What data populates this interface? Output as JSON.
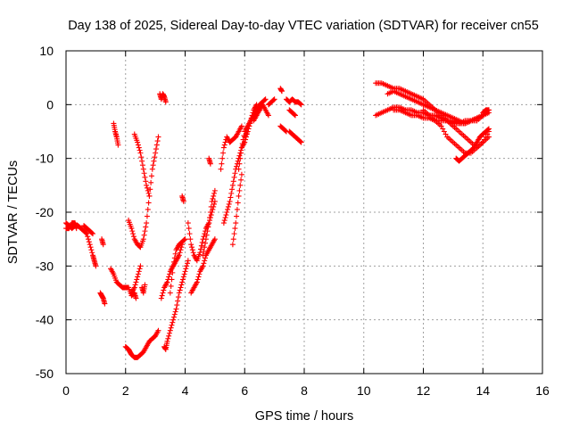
{
  "chart_data": {
    "type": "scatter",
    "title": "Day 138 of 2025, Sidereal Day-to-day VTEC variation (SDTVAR) for receiver cn55",
    "xlabel": "GPS time / hours",
    "ylabel": "SDTVAR / TECUs",
    "xlim": [
      0,
      16
    ],
    "ylim": [
      -50,
      10
    ],
    "xticks": [
      "0",
      "2",
      "4",
      "6",
      "8",
      "10",
      "12",
      "14",
      "16"
    ],
    "yticks": [
      "10",
      "0",
      "-10",
      "-20",
      "-30",
      "-40",
      "-50"
    ],
    "grid": true,
    "marker": "plus",
    "color": "#ff0000",
    "series": [
      {
        "name": "s1",
        "x": [
          0.0,
          0.1,
          0.2,
          0.3,
          0.4,
          0.5,
          0.6,
          0.7,
          0.8,
          0.9,
          0.95,
          1.0
        ],
        "y": [
          -22,
          -22.5,
          -23,
          -22.5,
          -22.5,
          -23,
          -23.5,
          -24,
          -26,
          -28,
          -29,
          -30
        ]
      },
      {
        "name": "s2",
        "x": [
          0.0,
          0.1,
          0.2,
          0.3,
          0.35
        ],
        "y": [
          -23,
          -23,
          -22,
          -22,
          -23
        ]
      },
      {
        "name": "s3",
        "x": [
          0.6,
          0.7,
          0.8,
          0.9
        ],
        "y": [
          -22.5,
          -23,
          -23.5,
          -24
        ]
      },
      {
        "name": "s4",
        "x": [
          1.15,
          1.2,
          1.25,
          1.3
        ],
        "y": [
          -35,
          -35.5,
          -36,
          -37
        ]
      },
      {
        "name": "s5",
        "x": [
          1.2,
          1.25
        ],
        "y": [
          -25,
          -26
        ]
      },
      {
        "name": "s6",
        "x": [
          1.5,
          1.6,
          1.7,
          1.8,
          1.9,
          2.0,
          2.1,
          2.2,
          2.3,
          2.35
        ],
        "y": [
          -30.5,
          -31.5,
          -33,
          -33.5,
          -34,
          -34,
          -34,
          -35.5,
          -35,
          -36
        ]
      },
      {
        "name": "s7",
        "x": [
          1.6,
          1.65,
          1.7,
          1.75
        ],
        "y": [
          -3.5,
          -5,
          -6,
          -7.5
        ]
      },
      {
        "name": "s8",
        "x": [
          2.0,
          2.1,
          2.15,
          2.2,
          2.3,
          2.4,
          2.5,
          2.6,
          2.7,
          2.8,
          2.9,
          3.0,
          3.1
        ],
        "y": [
          -45,
          -45.5,
          -46,
          -46.5,
          -47,
          -47,
          -46.5,
          -46,
          -45,
          -44,
          -43.5,
          -43,
          -42
        ]
      },
      {
        "name": "s9",
        "x": [
          2.1,
          2.2,
          2.3,
          2.4,
          2.5,
          2.6,
          2.7,
          2.8,
          2.9,
          3.0,
          3.1
        ],
        "y": [
          -21.5,
          -23,
          -25,
          -26,
          -26.5,
          -25,
          -22,
          -17,
          -12,
          -9,
          -6
        ]
      },
      {
        "name": "s10",
        "x": [
          2.3,
          2.4,
          2.5,
          2.6,
          2.7,
          2.8
        ],
        "y": [
          -5.5,
          -7,
          -9,
          -12,
          -15,
          -17
        ]
      },
      {
        "name": "s11",
        "x": [
          2.2,
          2.3,
          2.4,
          2.5
        ],
        "y": [
          -35,
          -34,
          -32,
          -30
        ]
      },
      {
        "name": "s12",
        "x": [
          2.55,
          2.6,
          2.65
        ],
        "y": [
          -34,
          -35,
          -33.5
        ]
      },
      {
        "name": "s13",
        "x": [
          3.15,
          3.2,
          3.25,
          3.3,
          3.35
        ],
        "y": [
          2,
          1,
          2,
          1.5,
          0.5
        ]
      },
      {
        "name": "s14",
        "x": [
          3.2,
          3.3,
          3.4,
          3.5,
          3.6,
          3.7,
          3.8,
          3.9
        ],
        "y": [
          -36,
          -34,
          -33,
          -31,
          -30,
          -29,
          -28,
          -26
        ]
      },
      {
        "name": "s15",
        "x": [
          3.3,
          3.35,
          3.4,
          3.5,
          3.6,
          3.7,
          3.8,
          3.9,
          4.0,
          4.1
        ],
        "y": [
          -45,
          -45.5,
          -44,
          -42,
          -40,
          -38,
          -35,
          -33,
          -31,
          -29
        ]
      },
      {
        "name": "s16",
        "x": [
          3.5,
          3.6,
          3.7,
          3.8,
          3.9,
          4.0
        ],
        "y": [
          -35,
          -30,
          -27,
          -26,
          -25.5,
          -25
        ]
      },
      {
        "name": "s17",
        "x": [
          3.9,
          3.95
        ],
        "y": [
          -17,
          -18
        ]
      },
      {
        "name": "s18",
        "x": [
          4.1,
          4.2,
          4.3,
          4.4,
          4.5,
          4.6,
          4.7,
          4.8,
          4.9,
          5.0
        ],
        "y": [
          -22,
          -26,
          -28,
          -29,
          -27.5,
          -25,
          -23,
          -22,
          -20,
          -18
        ]
      },
      {
        "name": "s19",
        "x": [
          4.2,
          4.3,
          4.4,
          4.5,
          4.6,
          4.7,
          4.8,
          4.9,
          5.0
        ],
        "y": [
          -35,
          -34,
          -33,
          -31,
          -30,
          -28,
          -27,
          -26,
          -25
        ]
      },
      {
        "name": "s20",
        "x": [
          4.6,
          4.7,
          4.8,
          4.9,
          5.0
        ],
        "y": [
          -28,
          -25,
          -22,
          -18,
          -16
        ]
      },
      {
        "name": "s21",
        "x": [
          4.8,
          4.85
        ],
        "y": [
          -10,
          -11
        ]
      },
      {
        "name": "s22",
        "x": [
          5.2,
          5.3,
          5.4,
          5.5,
          5.6,
          5.7,
          5.8,
          5.9
        ],
        "y": [
          -12,
          -8,
          -6,
          -7,
          -6.5,
          -6,
          -5,
          -4
        ]
      },
      {
        "name": "s23",
        "x": [
          5.3,
          5.4,
          5.5,
          5.6,
          5.7,
          5.8,
          5.9,
          6.0,
          6.1,
          6.2,
          6.3,
          6.4
        ],
        "y": [
          -22,
          -20,
          -18,
          -15,
          -12,
          -10,
          -8,
          -7,
          -5,
          -3,
          -1,
          0
        ]
      },
      {
        "name": "s24",
        "x": [
          5.6,
          5.7,
          5.8,
          5.9
        ],
        "y": [
          -26,
          -22,
          -17,
          -13
        ]
      },
      {
        "name": "s25",
        "x": [
          5.8,
          5.9,
          6.0,
          6.1,
          6.2,
          6.3,
          6.4,
          6.5,
          6.6,
          6.7
        ],
        "y": [
          -12,
          -8,
          -5,
          -4,
          -3,
          -2,
          -1,
          0,
          0.5,
          1
        ]
      },
      {
        "name": "s26",
        "x": [
          6.0,
          6.1,
          6.2,
          6.3,
          6.4,
          6.5
        ],
        "y": [
          -6,
          -5,
          -3,
          -2,
          -1.5,
          -1
        ]
      },
      {
        "name": "s27",
        "x": [
          6.3,
          6.4,
          6.5,
          6.6,
          6.7,
          6.8
        ],
        "y": [
          -3,
          -2,
          -1,
          0,
          -1,
          -2
        ]
      },
      {
        "name": "s28",
        "x": [
          6.8,
          6.9,
          7.0
        ],
        "y": [
          0,
          0.5,
          1
        ]
      },
      {
        "name": "s29",
        "x": [
          7.2,
          7.25
        ],
        "y": [
          3,
          2.5
        ]
      },
      {
        "name": "s30",
        "x": [
          7.2,
          7.3,
          7.4
        ],
        "y": [
          -4,
          -4.5,
          -5
        ]
      },
      {
        "name": "s31",
        "x": [
          7.5,
          7.6,
          7.7,
          7.8,
          7.9
        ],
        "y": [
          -5,
          -5.5,
          -6,
          -6.5,
          -7
        ]
      },
      {
        "name": "s32",
        "x": [
          7.4,
          7.5,
          7.6,
          7.7,
          7.8,
          7.9
        ],
        "y": [
          1,
          0.5,
          1,
          0.5,
          0.5,
          0
        ]
      },
      {
        "name": "s33",
        "x": [
          7.5,
          7.6,
          7.7
        ],
        "y": [
          -1,
          -1.5,
          -2
        ]
      },
      {
        "name": "s34",
        "x": [
          10.4,
          10.6,
          10.8,
          11.0,
          11.2,
          11.4,
          11.6,
          11.8,
          12.0,
          12.2,
          12.4,
          12.6,
          12.8,
          13.0,
          13.2,
          13.4,
          13.6,
          13.8,
          14.0,
          14.2
        ],
        "y": [
          4,
          4,
          3.5,
          3,
          3,
          2.5,
          2,
          1.5,
          1,
          0,
          -1,
          -2,
          -3,
          -4,
          -5,
          -6,
          -7,
          -8,
          -7,
          -6
        ]
      },
      {
        "name": "s35",
        "x": [
          10.4,
          10.6,
          10.8,
          11.0,
          11.2,
          11.4,
          11.6,
          11.8,
          12.0,
          12.2,
          12.4,
          12.6,
          12.8,
          13.0,
          13.2,
          13.4,
          13.6,
          13.8,
          14.0,
          14.2
        ],
        "y": [
          -2,
          -1.5,
          -1,
          -0.5,
          -0.5,
          -1,
          -1,
          -1.5,
          -1.5,
          -2,
          -2,
          -2.5,
          -3,
          -3,
          -3.5,
          -3.5,
          -3,
          -3,
          -2,
          -1
        ]
      },
      {
        "name": "s36",
        "x": [
          10.8,
          11.0,
          11.2,
          11.4,
          11.6,
          11.8,
          12.0,
          12.2,
          12.4,
          12.6,
          12.8,
          13.0,
          13.2,
          13.4,
          13.6,
          13.8,
          14.0,
          14.2
        ],
        "y": [
          2,
          2.5,
          2,
          1.5,
          1,
          0.5,
          0,
          -0.5,
          -1,
          -1.5,
          -2,
          -2.5,
          -3,
          -3.5,
          -3,
          -2.5,
          -2,
          -1.5
        ]
      },
      {
        "name": "s37",
        "x": [
          11.0,
          11.2,
          11.4,
          11.6,
          11.8,
          12.0,
          12.2,
          12.4,
          12.6,
          12.8,
          13.0,
          13.2,
          13.4,
          13.6,
          13.8,
          14.0
        ],
        "y": [
          -1,
          -1,
          -1.5,
          -2,
          -2,
          -2.5,
          -2.5,
          -3,
          -3,
          -3,
          -3.5,
          -3.5,
          -3,
          -3,
          -2.5,
          -2
        ]
      },
      {
        "name": "s38",
        "x": [
          12.0,
          12.2,
          12.4,
          12.6,
          12.8,
          13.0,
          13.2,
          13.4,
          13.6,
          13.8,
          14.0,
          14.2
        ],
        "y": [
          -1,
          -2,
          -3,
          -4,
          -6,
          -7,
          -8,
          -9,
          -9,
          -8,
          -7,
          -5
        ]
      },
      {
        "name": "s39",
        "x": [
          13.1,
          13.2,
          13.3,
          13.4,
          13.5,
          13.6,
          13.7,
          13.8,
          13.9,
          14.0,
          14.1,
          14.2
        ],
        "y": [
          -10,
          -10.5,
          -10,
          -9.5,
          -9,
          -8.5,
          -8,
          -7,
          -6,
          -5.5,
          -5,
          -4.5
        ]
      },
      {
        "name": "s40",
        "x": [
          14.0,
          14.1,
          14.2
        ],
        "y": [
          -1.5,
          -1,
          -1
        ]
      }
    ]
  }
}
